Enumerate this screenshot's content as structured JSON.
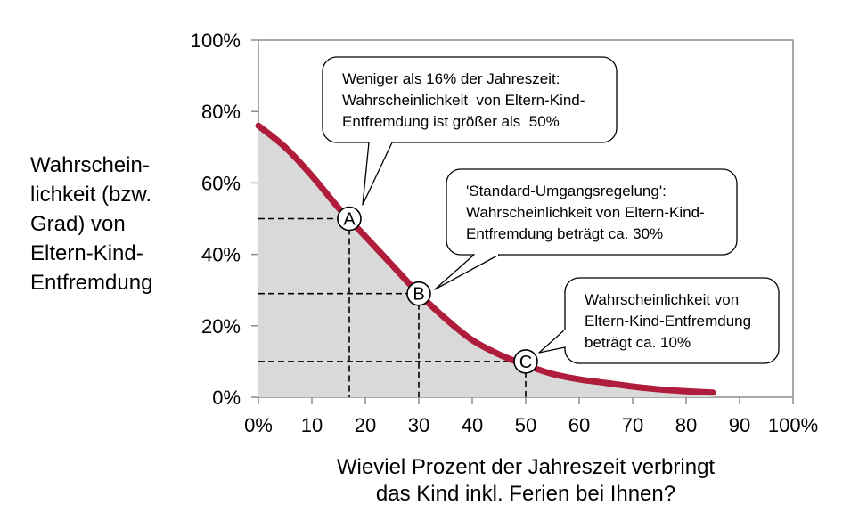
{
  "chart_data": {
    "type": "area",
    "ylabel_lines": [
      "Wahrschein-",
      "lichkeit (bzw.",
      "Grad) von",
      "Eltern-Kind-",
      "Entfremdung"
    ],
    "xlabel_lines": [
      "Wieviel Prozent der Jahreszeit verbringt",
      "das Kind inkl. Ferien bei Ihnen?"
    ],
    "xlim": [
      0,
      100
    ],
    "ylim": [
      0,
      100
    ],
    "x_ticks": [
      {
        "value": 0,
        "label": "0%"
      },
      {
        "value": 10,
        "label": "10"
      },
      {
        "value": 20,
        "label": "20"
      },
      {
        "value": 30,
        "label": "30"
      },
      {
        "value": 40,
        "label": "40"
      },
      {
        "value": 50,
        "label": "50"
      },
      {
        "value": 60,
        "label": "60"
      },
      {
        "value": 70,
        "label": "70"
      },
      {
        "value": 80,
        "label": "80"
      },
      {
        "value": 90,
        "label": "90"
      },
      {
        "value": 100,
        "label": "100%"
      }
    ],
    "y_ticks": [
      {
        "value": 0,
        "label": "0%"
      },
      {
        "value": 20,
        "label": "20%"
      },
      {
        "value": 40,
        "label": "40%"
      },
      {
        "value": 60,
        "label": "60%"
      },
      {
        "value": 80,
        "label": "80%"
      },
      {
        "value": 100,
        "label": "100%"
      }
    ],
    "series": [
      {
        "name": "Wahrscheinlichkeit",
        "x": [
          0,
          5,
          10,
          15,
          20,
          25,
          30,
          35,
          40,
          45,
          50,
          55,
          60,
          65,
          70,
          75,
          80,
          85
        ],
        "y": [
          76,
          70,
          62,
          53,
          45,
          37,
          29,
          22,
          16,
          12,
          9,
          6.5,
          5,
          4,
          3,
          2.2,
          1.7,
          1.3
        ]
      }
    ],
    "markers": [
      {
        "label": "A",
        "x": 17,
        "y": 50
      },
      {
        "label": "B",
        "x": 30,
        "y": 29
      },
      {
        "label": "C",
        "x": 50,
        "y": 10
      }
    ],
    "annotations": [
      {
        "target": "A",
        "lines": [
          "Weniger als 16% der Jahreszeit:",
          "Wahrscheinlichkeit  von Eltern-Kind-",
          "Entfremdung ist größer als  50%"
        ]
      },
      {
        "target": "B",
        "lines": [
          "'Standard-Umgangsregelung':",
          "Wahrscheinlichkeit von Eltern-Kind-",
          "Entfremdung beträgt ca. 30%"
        ]
      },
      {
        "target": "C",
        "lines": [
          "Wahrscheinlichkeit von",
          "Eltern-Kind-Entfremdung",
          "beträgt ca. 10%"
        ]
      }
    ],
    "colors": {
      "curve": "#b01c3c",
      "fill": "#d9d9d9",
      "axis": "#8c8c8c"
    }
  }
}
